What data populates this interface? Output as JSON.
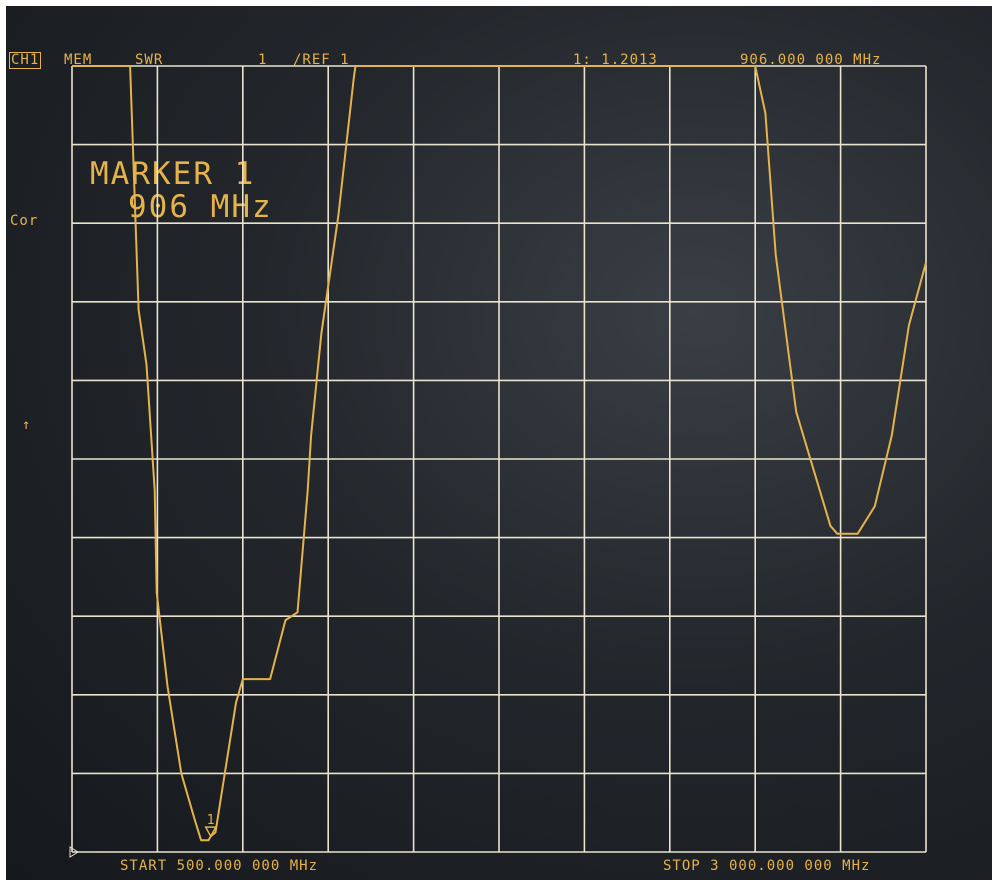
{
  "header": {
    "channel": "CH1",
    "mem": "MEM",
    "format": "SWR",
    "scale": "1",
    "ref": "/REF 1",
    "marker_readout": "1: 1.2013",
    "marker_freq": "906.000 000 MHz"
  },
  "side": {
    "cor": "Cor",
    "ref_arrow": "↑"
  },
  "marker_block": {
    "line1": "MARKER 1",
    "line2": "906 MHz"
  },
  "footer": {
    "start": "START  500.000 000 MHz",
    "stop": "STOP 3 000.000 000 MHz"
  },
  "marker_label": "1",
  "colors": {
    "trace": "#e6b24a",
    "grid": "#e9e3cf",
    "screen": "#1b1f24"
  },
  "chart_data": {
    "type": "line",
    "title": "",
    "xlabel": "",
    "ylabel": "SWR",
    "xlim": [
      500,
      3000
    ],
    "ylim": [
      1,
      11
    ],
    "x_unit": "MHz",
    "grid": true,
    "series": [
      {
        "x": [
          500,
          670,
          695,
          718,
          742,
          748,
          780,
          820,
          860,
          878,
          900,
          906,
          920,
          940,
          980,
          1000,
          1080,
          1125,
          1160,
          1190,
          1200,
          1230,
          1280,
          1325,
          1330,
          1350,
          1390,
          1430,
          1460,
          1490,
          1500,
          2500,
          2530,
          2560,
          2620,
          2720,
          2740,
          2800,
          2850,
          2900,
          2950,
          3000
        ],
        "y": [
          11,
          11,
          7.9,
          7.2,
          5.6,
          4.3,
          3.1,
          2.0,
          1.4,
          1.15,
          1.15,
          1.2,
          1.25,
          1.8,
          2.9,
          3.2,
          3.2,
          3.95,
          4.05,
          5.6,
          6.3,
          7.6,
          9.1,
          10.85,
          11,
          11,
          11,
          11,
          11,
          11,
          11,
          11,
          10.4,
          8.6,
          6.6,
          5.15,
          5.05,
          5.05,
          5.4,
          6.3,
          7.7,
          8.5
        ]
      }
    ],
    "markers": [
      {
        "label": "1",
        "x": 906,
        "y": 1.2013
      }
    ]
  }
}
